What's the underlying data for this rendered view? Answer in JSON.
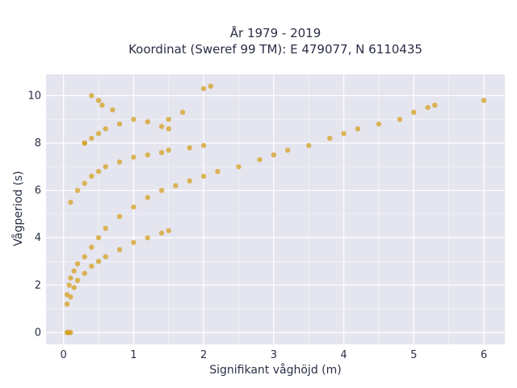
{
  "chart_data": {
    "type": "scatter",
    "title_lines": [
      "År 1979 - 2019",
      "Koordinat (Sweref 99 TM): E 479077, N 6110435"
    ],
    "xlabel": "Signifikant våghöjd (m)",
    "ylabel": "Vågperiod (s)",
    "xlim": [
      -0.25,
      6.3
    ],
    "ylim": [
      -0.5,
      10.9
    ],
    "xticks": [
      0,
      1,
      2,
      3,
      4,
      5,
      6
    ],
    "yticks": [
      0,
      2,
      4,
      6,
      8,
      10
    ],
    "grid": true,
    "plot_background": "#e5e5f0",
    "marker_color": "#d4a020",
    "series": [
      {
        "name": "",
        "x": [
          0.05,
          0.08,
          0.1,
          0.15,
          0.2,
          0.3,
          0.4,
          0.5,
          0.6,
          0.8,
          1.0,
          1.2,
          1.4,
          1.6,
          1.8,
          2.0,
          2.2,
          2.5,
          2.8,
          3.0,
          3.2,
          3.5,
          3.8,
          4.0,
          4.2,
          4.5,
          4.8,
          5.0,
          5.2,
          5.3,
          6.0,
          0.1,
          0.2,
          0.3,
          0.4,
          0.5,
          0.6,
          0.8,
          1.0,
          1.2,
          1.4,
          1.5,
          1.8,
          2.0,
          0.3,
          0.4,
          0.5,
          0.6,
          0.8,
          1.0,
          1.2,
          1.4,
          1.5,
          0.05,
          0.1,
          0.15,
          0.2,
          0.3,
          0.4,
          0.5,
          0.6,
          0.8,
          1.0,
          1.2,
          1.4,
          1.5,
          0.05,
          0.08,
          0.1,
          0.06,
          0.4,
          0.5,
          0.55,
          0.7,
          2.0,
          2.1,
          1.7,
          1.5,
          0.3
        ],
        "y": [
          1.6,
          2.0,
          2.3,
          2.6,
          2.9,
          3.2,
          3.6,
          4.0,
          4.4,
          4.9,
          5.3,
          5.7,
          6.0,
          6.2,
          6.4,
          6.6,
          6.8,
          7.0,
          7.3,
          7.5,
          7.7,
          7.9,
          8.2,
          8.4,
          8.6,
          8.8,
          9.0,
          9.3,
          9.5,
          9.6,
          9.8,
          5.5,
          6.0,
          6.3,
          6.6,
          6.8,
          7.0,
          7.2,
          7.4,
          7.5,
          7.6,
          7.7,
          7.8,
          7.9,
          8.0,
          8.2,
          8.4,
          8.6,
          8.8,
          9.0,
          8.9,
          8.7,
          8.6,
          1.2,
          1.5,
          1.9,
          2.2,
          2.5,
          2.8,
          3.0,
          3.2,
          3.5,
          3.8,
          4.0,
          4.2,
          4.3,
          0.0,
          0.0,
          0.0,
          0.0,
          10.0,
          9.8,
          9.6,
          9.4,
          10.3,
          10.4,
          9.3,
          9.0,
          8.0
        ]
      }
    ]
  }
}
